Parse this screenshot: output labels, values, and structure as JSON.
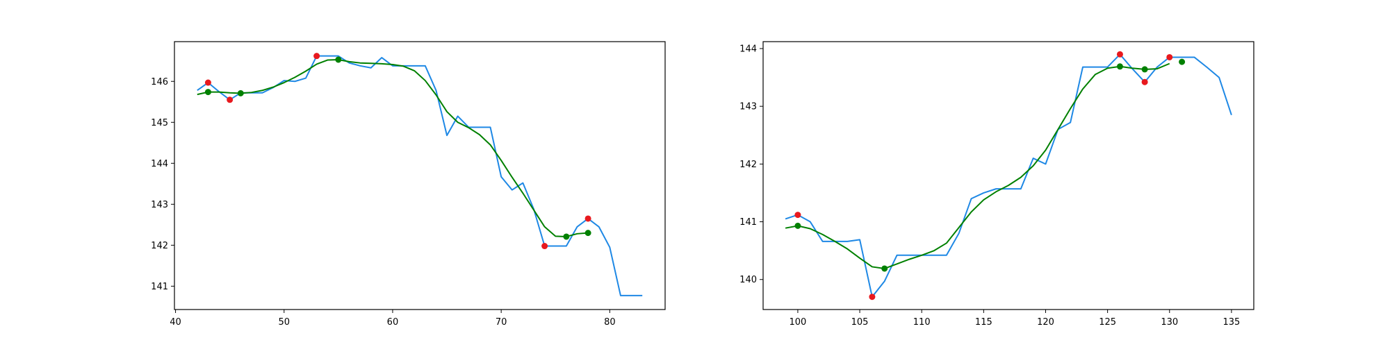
{
  "chart_data": [
    {
      "type": "line",
      "title": "",
      "xlabel": "",
      "ylabel": "",
      "xlim": [
        39.9,
        85.1
      ],
      "ylim": [
        140.43,
        146.97
      ],
      "xticks": [
        40,
        50,
        60,
        70,
        80
      ],
      "yticks": [
        141,
        142,
        143,
        144,
        145,
        146
      ],
      "grid": false,
      "series": [
        {
          "kind": "line",
          "color": "#1e88e5",
          "x": [
            42,
            43,
            44,
            45,
            46,
            47,
            48,
            49,
            50,
            51,
            52,
            53,
            54,
            55,
            56,
            57,
            58,
            59,
            60,
            61,
            62,
            63,
            64,
            65,
            66,
            67,
            68,
            69,
            70,
            71,
            72,
            73,
            74,
            75,
            76,
            77,
            78,
            79,
            80,
            81,
            82,
            83
          ],
          "y": [
            145.78,
            145.97,
            145.75,
            145.55,
            145.72,
            145.72,
            145.72,
            145.85,
            146.02,
            146.0,
            146.08,
            146.62,
            146.62,
            146.62,
            146.45,
            146.38,
            146.33,
            146.58,
            146.38,
            146.38,
            146.38,
            146.38,
            145.78,
            144.68,
            145.15,
            144.88,
            144.88,
            144.88,
            143.67,
            143.35,
            143.52,
            142.88,
            141.98,
            141.98,
            141.98,
            142.45,
            142.65,
            142.45,
            141.95,
            140.77,
            140.77,
            140.77
          ]
        },
        {
          "kind": "line",
          "color": "#008000",
          "x": [
            42,
            43,
            44,
            45,
            46,
            47,
            48,
            49,
            50,
            51,
            52,
            53,
            54,
            55,
            56,
            57,
            58,
            59,
            60,
            61,
            62,
            63,
            64,
            65,
            66,
            67,
            68,
            69,
            70,
            71,
            72,
            73,
            74,
            75,
            76,
            77,
            78
          ],
          "y": [
            145.68,
            145.74,
            145.74,
            145.72,
            145.71,
            145.73,
            145.78,
            145.86,
            145.97,
            146.1,
            146.25,
            146.42,
            146.52,
            146.53,
            146.48,
            146.45,
            146.44,
            146.43,
            146.41,
            146.37,
            146.26,
            146.02,
            145.67,
            145.26,
            145.0,
            144.87,
            144.7,
            144.45,
            144.07,
            143.66,
            143.27,
            142.86,
            142.45,
            142.22,
            142.21,
            142.28,
            142.3
          ]
        },
        {
          "kind": "scatter",
          "color": "#e8191e",
          "x": [
            43,
            45,
            53,
            74,
            78
          ],
          "y": [
            145.97,
            145.55,
            146.62,
            141.98,
            142.65
          ]
        },
        {
          "kind": "scatter",
          "color": "#008000",
          "x": [
            43,
            46,
            55,
            76,
            78
          ],
          "y": [
            145.74,
            145.71,
            146.53,
            142.21,
            142.3
          ]
        }
      ]
    },
    {
      "type": "line",
      "title": "",
      "xlabel": "",
      "ylabel": "",
      "xlim": [
        97.2,
        136.8
      ],
      "ylim": [
        139.48,
        144.12
      ],
      "xticks": [
        100,
        105,
        110,
        115,
        120,
        125,
        130,
        135
      ],
      "yticks": [
        140,
        141,
        142,
        143,
        144
      ],
      "grid": false,
      "series": [
        {
          "kind": "line",
          "color": "#1e88e5",
          "x": [
            99,
            100,
            101,
            102,
            103,
            104,
            105,
            106,
            107,
            108,
            109,
            110,
            111,
            112,
            113,
            114,
            115,
            116,
            117,
            118,
            119,
            120,
            121,
            122,
            123,
            124,
            125,
            126,
            127,
            128,
            129,
            130,
            131,
            132,
            133,
            134,
            135
          ],
          "y": [
            141.05,
            141.12,
            141.0,
            140.66,
            140.66,
            140.66,
            140.69,
            139.7,
            139.97,
            140.42,
            140.42,
            140.42,
            140.42,
            140.42,
            140.8,
            141.4,
            141.5,
            141.57,
            141.57,
            141.57,
            142.1,
            142.0,
            142.6,
            142.72,
            143.68,
            143.68,
            143.68,
            143.9,
            143.65,
            143.42,
            143.68,
            143.85,
            143.85,
            143.85,
            143.68,
            143.5,
            142.85
          ]
        },
        {
          "kind": "line",
          "color": "#008000",
          "x": [
            99,
            100,
            101,
            102,
            103,
            104,
            105,
            106,
            107,
            108,
            109,
            110,
            111,
            112,
            113,
            114,
            115,
            116,
            117,
            118,
            119,
            120,
            121,
            122,
            123,
            124,
            125,
            126,
            127,
            128,
            129,
            130
          ],
          "y": [
            140.89,
            140.93,
            140.88,
            140.78,
            140.66,
            140.53,
            140.37,
            140.22,
            140.19,
            140.27,
            140.35,
            140.42,
            140.5,
            140.63,
            140.9,
            141.17,
            141.38,
            141.52,
            141.63,
            141.77,
            141.97,
            142.24,
            142.6,
            142.96,
            143.3,
            143.55,
            143.66,
            143.69,
            143.66,
            143.64,
            143.65,
            143.74
          ]
        },
        {
          "kind": "scatter",
          "color": "#e8191e",
          "x": [
            100,
            106,
            126,
            128,
            130
          ],
          "y": [
            141.12,
            139.7,
            143.9,
            143.42,
            143.85
          ]
        },
        {
          "kind": "scatter",
          "color": "#008000",
          "x": [
            100,
            107,
            126,
            128,
            131
          ],
          "y": [
            140.93,
            140.19,
            143.69,
            143.64,
            143.77
          ]
        }
      ]
    }
  ]
}
